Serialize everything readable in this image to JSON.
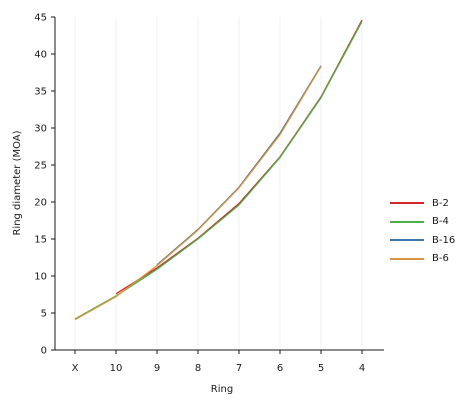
{
  "chart_data": {
    "type": "line",
    "xlabel": "Ring",
    "ylabel": "Ring diameter (MOA)",
    "categories": [
      "X",
      "10",
      "9",
      "8",
      "7",
      "6",
      "5",
      "4"
    ],
    "ylim": [
      0,
      45
    ],
    "yticks": [
      0,
      5,
      10,
      15,
      20,
      25,
      30,
      35,
      40,
      45
    ],
    "grid": "vertical",
    "legend_position": "right",
    "series": [
      {
        "name": "B-2",
        "color": "#d62728",
        "values": [
          null,
          7.6,
          11.1,
          15.1,
          19.8,
          26.1,
          34.2,
          44.6
        ]
      },
      {
        "name": "B-4",
        "color": "#4daf4a",
        "values": [
          4.2,
          7.3,
          10.9,
          15.0,
          19.6,
          26.0,
          34.1,
          44.4
        ]
      },
      {
        "name": "B-16",
        "color": "#3a75b0",
        "values": [
          null,
          null,
          11.5,
          16.3,
          22.0,
          29.3,
          38.4,
          null
        ]
      },
      {
        "name": "B-6",
        "color": "#d9963c",
        "values": [
          4.1,
          7.2,
          11.4,
          16.2,
          21.9,
          29.1,
          38.3,
          null
        ]
      }
    ]
  }
}
